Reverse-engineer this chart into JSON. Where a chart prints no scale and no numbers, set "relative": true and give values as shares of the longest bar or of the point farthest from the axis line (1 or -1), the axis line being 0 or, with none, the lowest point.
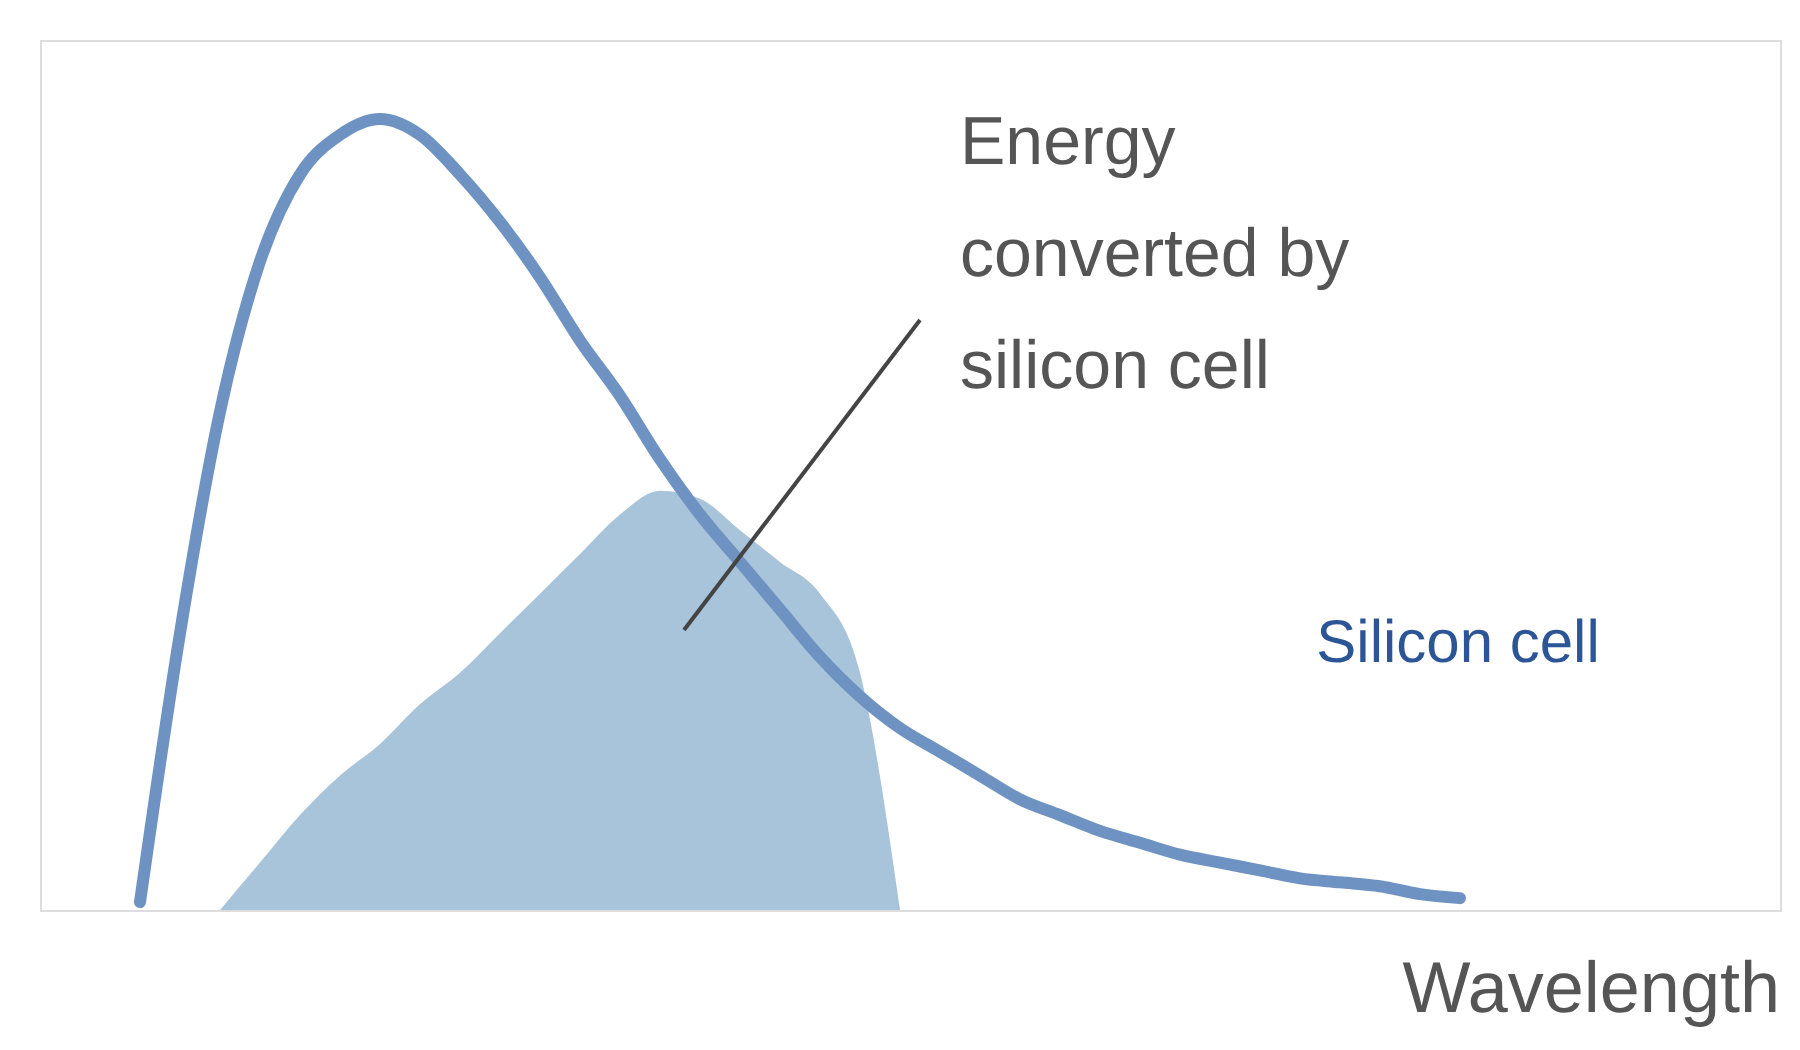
{
  "chart_data": {
    "type": "line",
    "relative": true,
    "xlabel": "Wavelength",
    "categories": [
      null,
      null,
      null,
      null,
      null,
      null,
      null,
      null,
      null,
      null,
      null,
      null,
      null,
      null,
      null,
      null,
      null,
      null,
      null,
      null,
      null,
      null,
      null,
      null,
      null,
      null,
      null,
      null,
      null,
      null,
      null,
      null,
      null,
      null,
      null,
      null,
      null,
      null,
      null,
      null,
      null,
      null,
      null
    ],
    "series": [
      {
        "type": "area",
        "color": "#a8c4da",
        "values": [
          null,
          null,
          null,
          null,
          0.0,
          0.06,
          0.12,
          0.17,
          0.21,
          0.26,
          0.3,
          0.35,
          0.4,
          0.45,
          0.5,
          0.53,
          0.52,
          0.48,
          0.44,
          0.4,
          0.3,
          0.0,
          null,
          null,
          null,
          null,
          null,
          null,
          null,
          null,
          null,
          null,
          null,
          null,
          null,
          null,
          null,
          null,
          null,
          null,
          null,
          null,
          null
        ]
      },
      {
        "color": "#6e93c2",
        "values": [
          null,
          null,
          0.01,
          0.35,
          0.63,
          0.82,
          0.93,
          0.98,
          1.0,
          0.98,
          0.93,
          0.87,
          0.8,
          0.72,
          0.65,
          0.57,
          0.5,
          0.44,
          0.38,
          0.32,
          0.27,
          0.23,
          0.2,
          0.17,
          0.14,
          0.12,
          0.1,
          0.085,
          0.07,
          0.06,
          0.05,
          0.04,
          0.035,
          0.03,
          0.02,
          0.015,
          null,
          null,
          null,
          null,
          null,
          null,
          null
        ]
      }
    ],
    "annotations": [
      "Energy\nconverted by\nsilicon cell",
      "Silicon cell"
    ]
  }
}
